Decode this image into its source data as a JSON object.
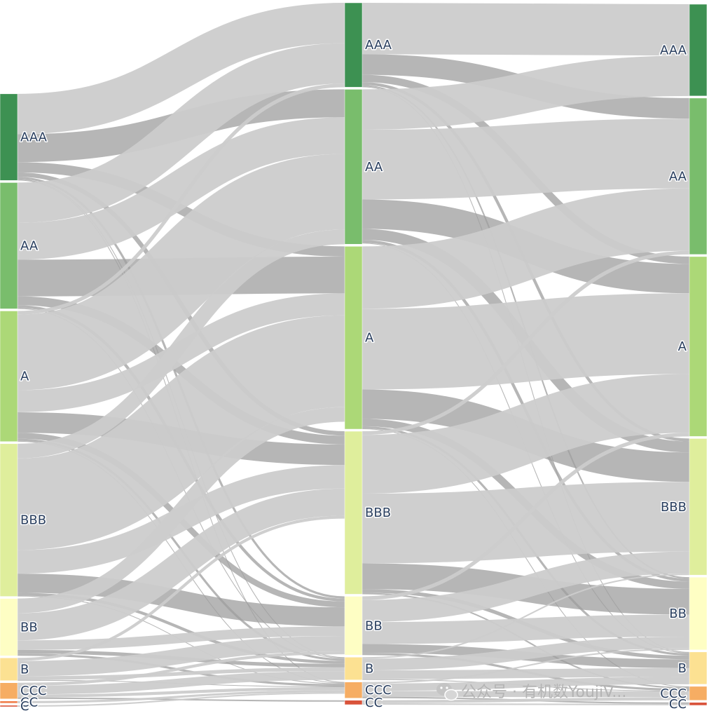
{
  "chart_data": {
    "type": "sankey",
    "columns": [
      {
        "stage": 1,
        "nodes": [
          {
            "id": "s1_AAA",
            "label": "AAA",
            "color": "#3d9152"
          },
          {
            "id": "s1_AA",
            "label": "AA",
            "color": "#79bd6c"
          },
          {
            "id": "s1_A",
            "label": "A",
            "color": "#acd877"
          },
          {
            "id": "s1_BBB",
            "label": "BBB",
            "color": "#dfee9c"
          },
          {
            "id": "s1_BB",
            "label": "BB",
            "color": "#fefec4"
          },
          {
            "id": "s1_B",
            "label": "B",
            "color": "#fce192"
          },
          {
            "id": "s1_CCC",
            "label": "CCC",
            "color": "#f6ad63"
          },
          {
            "id": "s1_CC",
            "label": "CC",
            "color": "#f07e4b"
          },
          {
            "id": "s1_C",
            "label": "C",
            "color": "#d9533a"
          }
        ]
      },
      {
        "stage": 2,
        "nodes": [
          {
            "id": "s2_AAA",
            "label": "AAA",
            "color": "#3d9152"
          },
          {
            "id": "s2_AA",
            "label": "AA",
            "color": "#79bd6c"
          },
          {
            "id": "s2_A",
            "label": "A",
            "color": "#acd877"
          },
          {
            "id": "s2_BBB",
            "label": "BBB",
            "color": "#dfee9c"
          },
          {
            "id": "s2_BB",
            "label": "BB",
            "color": "#fefec4"
          },
          {
            "id": "s2_B",
            "label": "B",
            "color": "#fce192"
          },
          {
            "id": "s2_CCC",
            "label": "CCC",
            "color": "#f6ad63"
          },
          {
            "id": "s2_CC",
            "label": "CC",
            "color": "#d9533a"
          }
        ]
      },
      {
        "stage": 3,
        "nodes": [
          {
            "id": "s3_AAA",
            "label": "AAA",
            "color": "#3d9152"
          },
          {
            "id": "s3_AA",
            "label": "AA",
            "color": "#79bd6c"
          },
          {
            "id": "s3_A",
            "label": "A",
            "color": "#acd877"
          },
          {
            "id": "s3_BBB",
            "label": "BBB",
            "color": "#dfee9c"
          },
          {
            "id": "s3_BB",
            "label": "BB",
            "color": "#fefec4"
          },
          {
            "id": "s3_B",
            "label": "B",
            "color": "#fce192"
          },
          {
            "id": "s3_CCC",
            "label": "CCC",
            "color": "#f6ad63"
          },
          {
            "id": "s3_CC",
            "label": "CC",
            "color": "#d9533a"
          }
        ]
      }
    ],
    "links": [
      {
        "source": "s1_AAA",
        "target": "s2_AAA",
        "value": 55,
        "shade": "light"
      },
      {
        "source": "s1_AAA",
        "target": "s2_AA",
        "value": 38,
        "shade": "dark"
      },
      {
        "source": "s1_AAA",
        "target": "s2_A",
        "value": 14,
        "shade": "dark"
      },
      {
        "source": "s1_AAA",
        "target": "s2_BBB",
        "value": 6,
        "shade": "dark"
      },
      {
        "source": "s1_AAA",
        "target": "s2_BB",
        "value": 3,
        "shade": "dark"
      },
      {
        "source": "s1_AAA",
        "target": "s2_B",
        "value": 1,
        "shade": "dark"
      },
      {
        "source": "s1_AAA",
        "target": "s2_CCC",
        "value": 1,
        "shade": "dark"
      },
      {
        "source": "s1_AA",
        "target": "s2_AAA",
        "value": 55,
        "shade": "light"
      },
      {
        "source": "s1_AA",
        "target": "s2_AA",
        "value": 50,
        "shade": "light"
      },
      {
        "source": "s1_AA",
        "target": "s2_A",
        "value": 50,
        "shade": "dark"
      },
      {
        "source": "s1_AA",
        "target": "s2_BBB",
        "value": 12,
        "shade": "dark"
      },
      {
        "source": "s1_AA",
        "target": "s2_BB",
        "value": 4,
        "shade": "dark"
      },
      {
        "source": "s1_AA",
        "target": "s2_B",
        "value": 1,
        "shade": "dark"
      },
      {
        "source": "s1_A",
        "target": "s2_AAA",
        "value": 5,
        "shade": "light"
      },
      {
        "source": "s1_A",
        "target": "s2_AA",
        "value": 103,
        "shade": "light"
      },
      {
        "source": "s1_A",
        "target": "s2_A",
        "value": 30,
        "shade": "light"
      },
      {
        "source": "s1_A",
        "target": "s2_BBB",
        "value": 28,
        "shade": "dark"
      },
      {
        "source": "s1_A",
        "target": "s2_BB",
        "value": 8,
        "shade": "dark"
      },
      {
        "source": "s1_A",
        "target": "s2_B",
        "value": 3,
        "shade": "dark"
      },
      {
        "source": "s1_A",
        "target": "s2_CCC",
        "value": 1,
        "shade": "dark"
      },
      {
        "source": "s1_BBB",
        "target": "s2_AA",
        "value": 20,
        "shade": "light"
      },
      {
        "source": "s1_BBB",
        "target": "s2_A",
        "value": 125,
        "shade": "light"
      },
      {
        "source": "s1_BBB",
        "target": "s2_BBB",
        "value": 32,
        "shade": "light"
      },
      {
        "source": "s1_BBB",
        "target": "s2_BB",
        "value": 26,
        "shade": "dark"
      },
      {
        "source": "s1_BBB",
        "target": "s2_B",
        "value": 4,
        "shade": "dark"
      },
      {
        "source": "s1_BBB",
        "target": "s2_CCC",
        "value": 1,
        "shade": "dark"
      },
      {
        "source": "s1_BB",
        "target": "s2_A",
        "value": 20,
        "shade": "light"
      },
      {
        "source": "s1_BB",
        "target": "s2_BBB",
        "value": 37,
        "shade": "light"
      },
      {
        "source": "s1_BB",
        "target": "s2_BB",
        "value": 13,
        "shade": "light"
      },
      {
        "source": "s1_BB",
        "target": "s2_B",
        "value": 5,
        "shade": "dark"
      },
      {
        "source": "s1_BB",
        "target": "s2_CCC",
        "value": 3,
        "shade": "dark"
      },
      {
        "source": "s1_B",
        "target": "s2_BBB",
        "value": 4,
        "shade": "light"
      },
      {
        "source": "s1_B",
        "target": "s2_BB",
        "value": 21,
        "shade": "light"
      },
      {
        "source": "s1_B",
        "target": "s2_B",
        "value": 5,
        "shade": "light"
      },
      {
        "source": "s1_B",
        "target": "s2_CCC",
        "value": 1,
        "shade": "dark"
      },
      {
        "source": "s1_CCC",
        "target": "s2_BB",
        "value": 4,
        "shade": "light"
      },
      {
        "source": "s1_CCC",
        "target": "s2_B",
        "value": 12,
        "shade": "light"
      },
      {
        "source": "s1_CCC",
        "target": "s2_CCC",
        "value": 4,
        "shade": "light"
      },
      {
        "source": "s1_CCC",
        "target": "s2_CC",
        "value": 2,
        "shade": "dark"
      },
      {
        "source": "s1_CC",
        "target": "s2_CCC",
        "value": 3,
        "shade": "light"
      },
      {
        "source": "s1_C",
        "target": "s2_CCC",
        "value": 2,
        "shade": "light"
      },
      {
        "source": "s2_AAA",
        "target": "s3_AAA",
        "value": 70,
        "shade": "light"
      },
      {
        "source": "s2_AAA",
        "target": "s3_AA",
        "value": 28,
        "shade": "dark"
      },
      {
        "source": "s2_AAA",
        "target": "s3_A",
        "value": 10,
        "shade": "dark"
      },
      {
        "source": "s2_AAA",
        "target": "s3_BBB",
        "value": 4,
        "shade": "dark"
      },
      {
        "source": "s2_AAA",
        "target": "s3_BB",
        "value": 2,
        "shade": "dark"
      },
      {
        "source": "s2_AAA",
        "target": "s3_B",
        "value": 1,
        "shade": "dark"
      },
      {
        "source": "s2_AA",
        "target": "s3_AAA",
        "value": 55,
        "shade": "light"
      },
      {
        "source": "s2_AA",
        "target": "s3_AA",
        "value": 95,
        "shade": "light"
      },
      {
        "source": "s2_AA",
        "target": "s3_A",
        "value": 40,
        "shade": "dark"
      },
      {
        "source": "s2_AA",
        "target": "s3_BBB",
        "value": 15,
        "shade": "dark"
      },
      {
        "source": "s2_AA",
        "target": "s3_BB",
        "value": 4,
        "shade": "dark"
      },
      {
        "source": "s2_AA",
        "target": "s3_B",
        "value": 1,
        "shade": "dark"
      },
      {
        "source": "s2_A",
        "target": "s3_AA",
        "value": 85,
        "shade": "light"
      },
      {
        "source": "s2_A",
        "target": "s3_A",
        "value": 110,
        "shade": "light"
      },
      {
        "source": "s2_A",
        "target": "s3_BBB",
        "value": 40,
        "shade": "dark"
      },
      {
        "source": "s2_A",
        "target": "s3_BB",
        "value": 10,
        "shade": "dark"
      },
      {
        "source": "s2_A",
        "target": "s3_B",
        "value": 3,
        "shade": "dark"
      },
      {
        "source": "s2_A",
        "target": "s3_CCC",
        "value": 1,
        "shade": "dark"
      },
      {
        "source": "s2_BBB",
        "target": "s3_AA",
        "value": 5,
        "shade": "light"
      },
      {
        "source": "s2_BBB",
        "target": "s3_A",
        "value": 80,
        "shade": "light"
      },
      {
        "source": "s2_BBB",
        "target": "s3_BBB",
        "value": 95,
        "shade": "light"
      },
      {
        "source": "s2_BBB",
        "target": "s3_BB",
        "value": 35,
        "shade": "dark"
      },
      {
        "source": "s2_BBB",
        "target": "s3_B",
        "value": 5,
        "shade": "dark"
      },
      {
        "source": "s2_BBB",
        "target": "s3_CCC",
        "value": 2,
        "shade": "dark"
      },
      {
        "source": "s2_BB",
        "target": "s3_A",
        "value": 5,
        "shade": "light"
      },
      {
        "source": "s2_BB",
        "target": "s3_BBB",
        "value": 30,
        "shade": "light"
      },
      {
        "source": "s2_BB",
        "target": "s3_BB",
        "value": 30,
        "shade": "light"
      },
      {
        "source": "s2_BB",
        "target": "s3_B",
        "value": 12,
        "shade": "dark"
      },
      {
        "source": "s2_BB",
        "target": "s3_CCC",
        "value": 3,
        "shade": "dark"
      },
      {
        "source": "s2_B",
        "target": "s3_BBB",
        "value": 2,
        "shade": "light"
      },
      {
        "source": "s2_B",
        "target": "s3_BB",
        "value": 16,
        "shade": "light"
      },
      {
        "source": "s2_B",
        "target": "s3_B",
        "value": 12,
        "shade": "light"
      },
      {
        "source": "s2_B",
        "target": "s3_CCC",
        "value": 1,
        "shade": "dark"
      },
      {
        "source": "s2_CCC",
        "target": "s3_BB",
        "value": 2,
        "shade": "light"
      },
      {
        "source": "s2_CCC",
        "target": "s3_B",
        "value": 10,
        "shade": "light"
      },
      {
        "source": "s2_CCC",
        "target": "s3_CCC",
        "value": 8,
        "shade": "light"
      },
      {
        "source": "s2_CCC",
        "target": "s3_CC",
        "value": 2,
        "shade": "dark"
      },
      {
        "source": "s2_CC",
        "target": "s3_CCC",
        "value": 4,
        "shade": "light"
      },
      {
        "source": "s2_CC",
        "target": "s3_CC",
        "value": 2,
        "shade": "light"
      }
    ],
    "link_colors": {
      "light": "#cccccc",
      "dark": "#9e9e9e"
    }
  },
  "watermark": {
    "text": "公众号 · 有机数YoujiV...",
    "icon": "wechat-icon"
  }
}
